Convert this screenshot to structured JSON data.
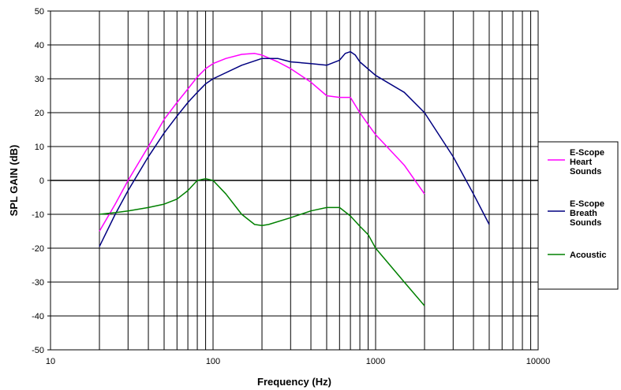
{
  "chart_data": {
    "type": "line",
    "xlabel": "Frequency (Hz)",
    "ylabel": "SPL GAIN (dB)",
    "x_scale": "log",
    "xlim": [
      10,
      10000
    ],
    "ylim": [
      -50,
      50
    ],
    "x_ticks": [
      10,
      100,
      1000,
      10000
    ],
    "y_ticks": [
      -50,
      -40,
      -30,
      -20,
      -10,
      0,
      10,
      20,
      30,
      40,
      50
    ],
    "grid": true,
    "legend_position": "right",
    "series": [
      {
        "name": "E-Scope Heart Sounds",
        "label_lines": [
          "E-Scope",
          "Heart",
          "Sounds"
        ],
        "color": "#ff00ff",
        "x": [
          20,
          25,
          30,
          40,
          50,
          60,
          70,
          80,
          90,
          100,
          120,
          150,
          180,
          200,
          250,
          300,
          400,
          500,
          600,
          700,
          800,
          900,
          1000,
          1500,
          2000
        ],
        "y": [
          -15,
          -7,
          0,
          10,
          18,
          23,
          27,
          30.5,
          33,
          34.5,
          36,
          37.2,
          37.5,
          37,
          35,
          33,
          29,
          25,
          24.5,
          24.5,
          20,
          16.5,
          13.5,
          4.5,
          -4
        ]
      },
      {
        "name": "E-Scope Breath Sounds",
        "label_lines": [
          "E-Scope",
          "Breath",
          "Sounds"
        ],
        "color": "#000080",
        "x": [
          20,
          25,
          30,
          40,
          50,
          60,
          70,
          80,
          90,
          100,
          150,
          200,
          250,
          300,
          400,
          500,
          600,
          650,
          700,
          750,
          800,
          1000,
          1500,
          2000,
          3000,
          4000,
          5000
        ],
        "y": [
          -19.5,
          -10,
          -3,
          7,
          14,
          19,
          23,
          26,
          28.5,
          30,
          34,
          36,
          36,
          35,
          34.5,
          34,
          35.5,
          37.5,
          38,
          37,
          35,
          31,
          26,
          20,
          7,
          -4,
          -13
        ]
      },
      {
        "name": "Acoustic",
        "label_lines": [
          "Acoustic"
        ],
        "color": "#008000",
        "x": [
          20,
          25,
          30,
          40,
          50,
          60,
          70,
          80,
          90,
          100,
          120,
          150,
          180,
          200,
          220,
          300,
          400,
          500,
          600,
          700,
          800,
          900,
          1000,
          1500,
          2000
        ],
        "y": [
          -10,
          -9.5,
          -9,
          -8,
          -7,
          -5.5,
          -3,
          0,
          0.5,
          0,
          -4,
          -10,
          -13,
          -13.3,
          -13,
          -11,
          -9,
          -8,
          -8,
          -10.5,
          -13.5,
          -16,
          -20,
          -30,
          -37
        ]
      }
    ]
  }
}
